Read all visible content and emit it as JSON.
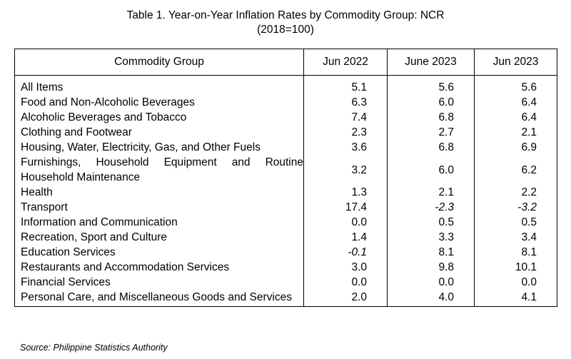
{
  "title": {
    "line1": "Table 1. Year-on-Year Inflation Rates by Commodity Group: NCR",
    "line2": "(2018=100)"
  },
  "table": {
    "headers": [
      "Commodity Group",
      "Jun 2022",
      "June 2023",
      "Jun 2023"
    ],
    "rows": [
      {
        "group": "All Items",
        "v1": "5.1",
        "v2": "5.6",
        "v3": "5.6"
      },
      {
        "group": "Food and Non-Alcoholic Beverages",
        "v1": "6.3",
        "v2": "6.0",
        "v3": "6.4"
      },
      {
        "group": "Alcoholic Beverages and Tobacco",
        "v1": "7.4",
        "v2": "6.8",
        "v3": "6.4"
      },
      {
        "group": "Clothing and Footwear",
        "v1": "2.3",
        "v2": "2.7",
        "v3": "2.1"
      },
      {
        "group": "Housing, Water, Electricity, Gas, and Other Fuels",
        "v1": "3.6",
        "v2": "6.8",
        "v3": "6.9"
      },
      {
        "group": "Furnishings, Household Equipment and Routine Household Maintenance",
        "v1": "3.2",
        "v2": "6.0",
        "v3": "6.2"
      },
      {
        "group": "Health",
        "v1": "1.3",
        "v2": "2.1",
        "v3": "2.2"
      },
      {
        "group": "Transport",
        "v1": "17.4",
        "v2": "-2.3",
        "v3": "-3.2"
      },
      {
        "group": "Information and Communication",
        "v1": "0.0",
        "v2": "0.5",
        "v3": "0.5"
      },
      {
        "group": "Recreation, Sport and Culture",
        "v1": "1.4",
        "v2": "3.3",
        "v3": "3.4"
      },
      {
        "group": "Education Services",
        "v1": "-0.1",
        "v2": "8.1",
        "v3": "8.1"
      },
      {
        "group": "Restaurants and Accommodation Services",
        "v1": "3.0",
        "v2": "9.8",
        "v3": "10.1"
      },
      {
        "group": "Financial Services",
        "v1": "0.0",
        "v2": "0.0",
        "v3": "0.0"
      },
      {
        "group": "Personal Care, and Miscellaneous Goods and Services",
        "v1": "2.0",
        "v2": "4.0",
        "v3": "4.1"
      }
    ]
  },
  "source": "Source: Philippine Statistics Authority"
}
